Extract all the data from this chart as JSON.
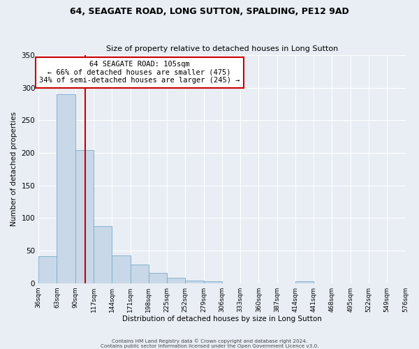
{
  "title": "64, SEAGATE ROAD, LONG SUTTON, SPALDING, PE12 9AD",
  "subtitle": "Size of property relative to detached houses in Long Sutton",
  "xlabel": "Distribution of detached houses by size in Long Sutton",
  "ylabel": "Number of detached properties",
  "bar_color": "#c8d8e8",
  "bar_edge_color": "#7aaac8",
  "background_color": "#e8eef4",
  "grid_color": "#ffffff",
  "vline_x": 105,
  "vline_color": "#cc0000",
  "annotation_box_text": "64 SEAGATE ROAD: 105sqm\n← 66% of detached houses are smaller (475)\n34% of semi-detached houses are larger (245) →",
  "annotation_box_color": "#cc0000",
  "footer_line1": "Contains HM Land Registry data © Crown copyright and database right 2024.",
  "footer_line2": "Contains public sector information licensed under the Open Government Licence v3.0.",
  "bin_edges": [
    36,
    63,
    90,
    117,
    144,
    171,
    198,
    225,
    252,
    279,
    306,
    333,
    360,
    387,
    414,
    441,
    468,
    495,
    522,
    549,
    576
  ],
  "bin_counts": [
    41,
    290,
    204,
    88,
    43,
    29,
    16,
    8,
    4,
    3,
    0,
    0,
    0,
    0,
    3,
    0,
    0,
    0,
    0,
    0
  ],
  "ylim": [
    0,
    350
  ],
  "yticks": [
    0,
    50,
    100,
    150,
    200,
    250,
    300,
    350
  ],
  "figsize": [
    6.0,
    5.0
  ],
  "dpi": 100
}
